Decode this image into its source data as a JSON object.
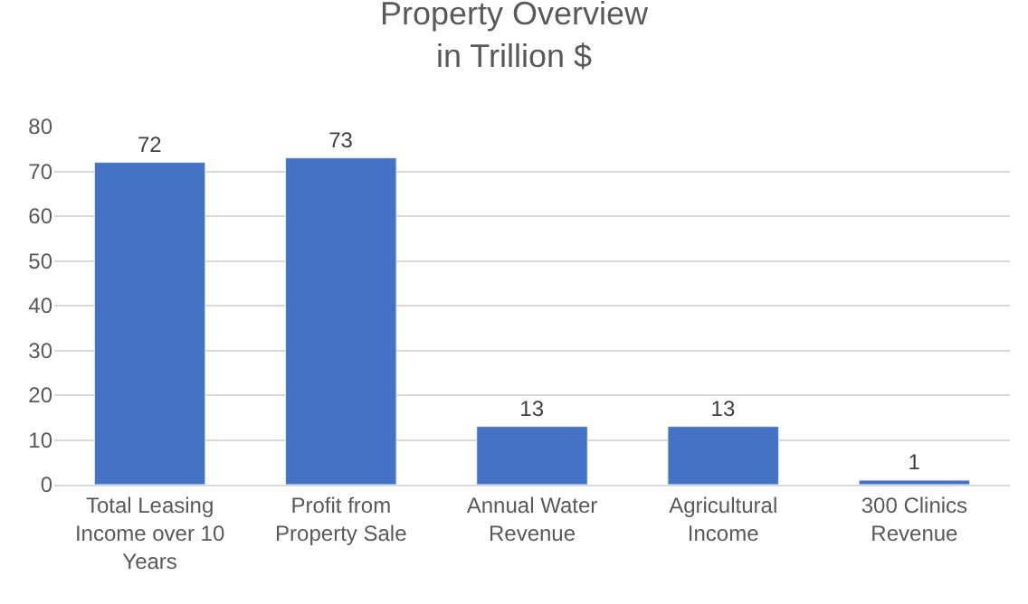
{
  "chart_data": {
    "type": "bar",
    "title": "Property Overview\nin Trillion $",
    "categories": [
      "Total Leasing Income over 10 Years",
      "Profit from Property Sale",
      "Annual Water Revenue",
      "Agricultural Income",
      "300 Clinics Revenue"
    ],
    "values": [
      72,
      73,
      13,
      13,
      1
    ],
    "color": "#4472c4",
    "ylim": [
      0,
      80
    ],
    "yticks": [
      0,
      10,
      20,
      30,
      40,
      50,
      60,
      70,
      80
    ],
    "grid": "y",
    "data_labels": true
  }
}
